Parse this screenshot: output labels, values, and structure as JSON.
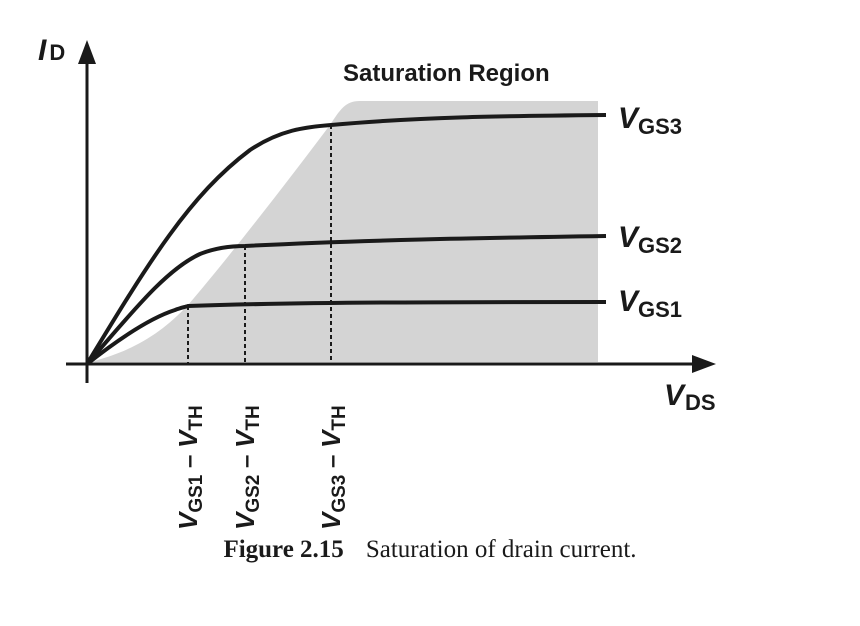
{
  "diagram": {
    "y_axis": {
      "symbol": "I",
      "subscript": "D"
    },
    "x_axis": {
      "symbol": "V",
      "subscript": "DS"
    },
    "region_label": "Saturation Region",
    "colors": {
      "region_fill": "#d4d4d4",
      "stroke": "#1a1a1a",
      "background": "#ffffff"
    },
    "curves": [
      {
        "symbol": "V",
        "subscript": "GS3"
      },
      {
        "symbol": "V",
        "subscript": "GS2"
      },
      {
        "symbol": "V",
        "subscript": "GS1"
      }
    ],
    "threshold_labels": [
      {
        "v": "V",
        "gs": "GS1",
        "sep": " – ",
        "v2": "V",
        "th": "TH"
      },
      {
        "v": "V",
        "gs": "GS2",
        "sep": " – ",
        "v2": "V",
        "th": "TH"
      },
      {
        "v": "V",
        "gs": "GS3",
        "sep": " – ",
        "v2": "V",
        "th": "TH"
      }
    ]
  },
  "caption": {
    "number": "Figure 2.15",
    "text": "Saturation of drain current."
  }
}
